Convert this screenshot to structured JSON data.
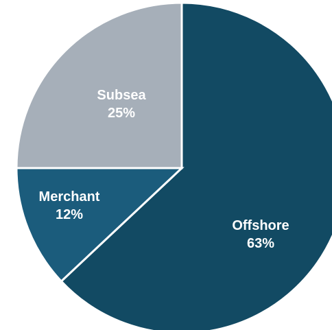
{
  "chart_data": {
    "type": "pie",
    "title": "",
    "slices": [
      {
        "label": "Offshore",
        "value": 63,
        "value_label": "63%",
        "color": "#124a63"
      },
      {
        "label": "Merchant",
        "value": 12,
        "value_label": "12%",
        "color": "#1b5c7c"
      },
      {
        "label": "Subsea",
        "value": 25,
        "value_label": "25%",
        "color": "#a6afb9"
      }
    ],
    "start": "12 o'clock",
    "direction": "clockwise",
    "legend": "none",
    "labels_inside": true
  }
}
